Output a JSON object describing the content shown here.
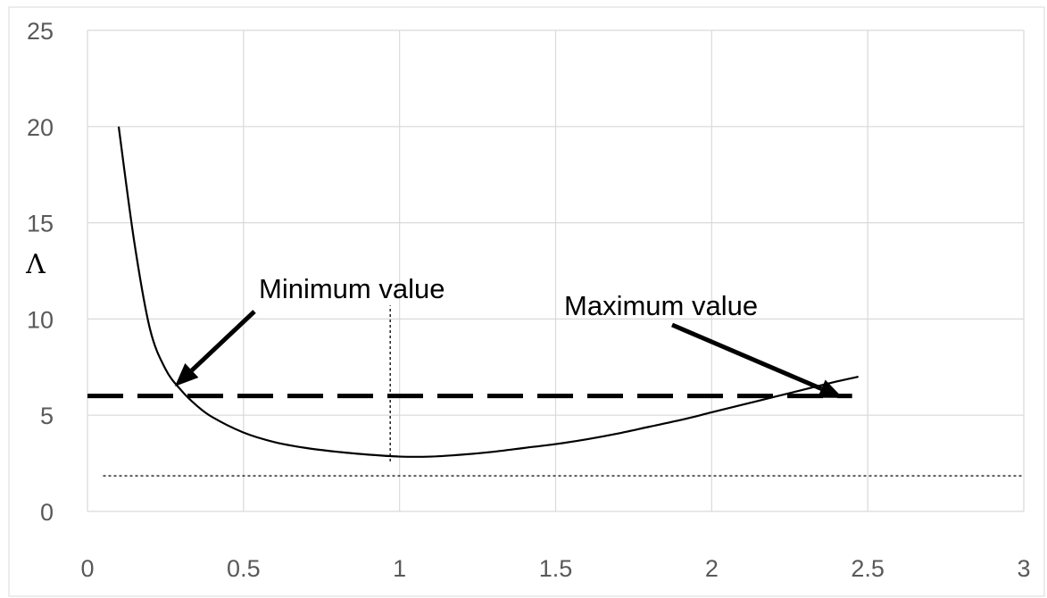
{
  "chart_data": {
    "type": "line",
    "title": "",
    "xlabel": "",
    "ylabel": "Λ",
    "xlim": [
      0,
      3
    ],
    "ylim": [
      0,
      25
    ],
    "grid": true,
    "x_ticks": [
      "0",
      "0.5",
      "1",
      "1.5",
      "2",
      "2.5",
      "3"
    ],
    "y_ticks": [
      "0",
      "5",
      "10",
      "15",
      "20",
      "25"
    ],
    "series": [
      {
        "x": [
          0.1,
          0.15,
          0.2,
          0.25,
          0.3,
          0.35,
          0.4,
          0.5,
          0.6,
          0.7,
          0.8,
          0.9,
          1.0,
          1.1,
          1.2,
          1.3,
          1.4,
          1.5,
          1.6,
          1.7,
          1.8,
          1.9,
          2.0,
          2.1,
          2.2,
          2.3,
          2.4,
          2.47
        ],
        "y": [
          20.0,
          14.0,
          9.5,
          7.4,
          6.3,
          5.5,
          4.9,
          4.1,
          3.6,
          3.3,
          3.1,
          2.95,
          2.85,
          2.85,
          2.95,
          3.1,
          3.3,
          3.5,
          3.75,
          4.05,
          4.4,
          4.75,
          5.15,
          5.55,
          5.95,
          6.35,
          6.75,
          7.0
        ]
      }
    ],
    "reference_lines": [
      {
        "style": "dashed-thick",
        "orientation": "horizontal",
        "y": 6.0,
        "x_from": 0.0,
        "x_to": 2.45
      },
      {
        "style": "dotted-thin",
        "orientation": "horizontal",
        "y": 1.85,
        "x_from": 0.05,
        "x_to": 3.0
      },
      {
        "style": "dotted-thin",
        "orientation": "vertical",
        "x": 0.97,
        "y_from": 2.6,
        "y_to": 10.7
      }
    ],
    "annotations": [
      {
        "text": "Minimum value",
        "target_x": 0.28,
        "target_y": 6.5
      },
      {
        "text": "Maximum value",
        "target_x": 2.42,
        "target_y": 5.9
      }
    ],
    "colors": {
      "curve": "#000000",
      "grid": "#d9d9d9",
      "tick_label": "#595959"
    }
  }
}
